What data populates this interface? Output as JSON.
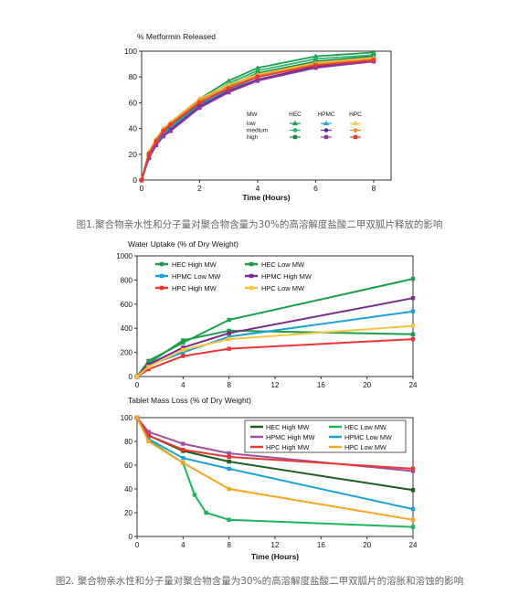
{
  "captions": {
    "fig1": "图1.聚合物亲水性和分子量对聚合物含量为30%的高溶解度盐酸二甲双胍片释放的影响",
    "fig2": "图2. 聚合物亲水性和分子量对聚合物含量为30%的高溶解度盐酸二甲双胍片的溶胀和溶蚀的影响"
  },
  "legend1": {
    "mw_header": "MW",
    "rows": [
      "low",
      "medium",
      "high"
    ],
    "cols": [
      "HEC",
      "HPMC",
      "HPC"
    ]
  },
  "colors": {
    "HEC": "#1e9e4a",
    "HPMC": "#6b2d8f",
    "HPC": "#e8b63a",
    "HPC_alt": "#e53935",
    "HPMC_low": "#1da1d8",
    "HEC_high_dark": "#1b5e20",
    "orange": "#f5a623"
  },
  "chart_data": [
    {
      "id": "release",
      "type": "line",
      "title": "% Metformin Released",
      "xlabel": "Time (Hours)",
      "ylabel": "",
      "xlim": [
        0,
        8.6
      ],
      "ylim": [
        0,
        100
      ],
      "xticks": [
        0,
        2,
        4,
        6,
        8
      ],
      "yticks": [
        0,
        20,
        40,
        60,
        80,
        100
      ],
      "series": [
        {
          "name": "HEC low",
          "color": "#1e9e4a",
          "x": [
            0,
            0.25,
            0.5,
            0.75,
            1,
            2,
            3,
            4,
            6,
            8
          ],
          "y": [
            0,
            20,
            30,
            38,
            42,
            63,
            77,
            87,
            96,
            99
          ]
        },
        {
          "name": "HEC medium",
          "color": "#2bb673",
          "x": [
            0,
            0.25,
            0.5,
            0.75,
            1,
            2,
            3,
            4,
            6,
            8
          ],
          "y": [
            0,
            19,
            29,
            37,
            41,
            61,
            75,
            85,
            94,
            97
          ]
        },
        {
          "name": "HEC high",
          "color": "#178a3c",
          "x": [
            0,
            0.25,
            0.5,
            0.75,
            1,
            2,
            3,
            4,
            6,
            8
          ],
          "y": [
            0,
            18,
            28,
            36,
            40,
            59,
            73,
            83,
            92,
            96
          ]
        },
        {
          "name": "HPMC low",
          "color": "#1da1d8",
          "x": [
            0,
            0.25,
            0.5,
            0.75,
            1,
            2,
            3,
            4,
            6,
            8
          ],
          "y": [
            0,
            18,
            28,
            35,
            40,
            58,
            70,
            80,
            90,
            95
          ]
        },
        {
          "name": "HPMC medium",
          "color": "#5a2d91",
          "x": [
            0,
            0.25,
            0.5,
            0.75,
            1,
            2,
            3,
            4,
            6,
            8
          ],
          "y": [
            0,
            17,
            27,
            34,
            39,
            57,
            69,
            78,
            88,
            93
          ]
        },
        {
          "name": "HPMC high",
          "color": "#8e3a9e",
          "x": [
            0,
            0.25,
            0.5,
            0.75,
            1,
            2,
            3,
            4,
            6,
            8
          ],
          "y": [
            0,
            17,
            27,
            34,
            38,
            56,
            68,
            77,
            87,
            92
          ]
        },
        {
          "name": "HPC low",
          "color": "#f2c14e",
          "x": [
            0,
            0.25,
            0.5,
            0.75,
            1,
            2,
            3,
            4,
            6,
            8
          ],
          "y": [
            0,
            22,
            32,
            40,
            45,
            63,
            74,
            82,
            91,
            95
          ]
        },
        {
          "name": "HPC medium",
          "color": "#f28c28",
          "x": [
            0,
            0.25,
            0.5,
            0.75,
            1,
            2,
            3,
            4,
            6,
            8
          ],
          "y": [
            0,
            21,
            31,
            39,
            44,
            62,
            72,
            81,
            90,
            94
          ]
        },
        {
          "name": "HPC high",
          "color": "#e53935",
          "x": [
            0,
            0.25,
            0.5,
            0.75,
            1,
            2,
            3,
            4,
            6,
            8
          ],
          "y": [
            0,
            20,
            30,
            38,
            43,
            60,
            71,
            80,
            89,
            93
          ]
        }
      ]
    },
    {
      "id": "water",
      "type": "line",
      "title": "Water Uptake (% of Dry Weight)",
      "xlabel": "",
      "ylabel": "",
      "xlim": [
        0,
        24
      ],
      "ylim": [
        0,
        1000
      ],
      "xticks": [
        0,
        4,
        8,
        12,
        16,
        20,
        24
      ],
      "yticks": [
        0,
        200,
        400,
        600,
        800,
        1000
      ],
      "series": [
        {
          "name": "HEC High MW",
          "color": "#1e9e4a",
          "x": [
            0,
            1,
            4,
            8,
            24
          ],
          "y": [
            0,
            130,
            280,
            470,
            810
          ]
        },
        {
          "name": "HEC Low MW",
          "color": "#1e9e4a",
          "x": [
            0,
            1,
            4,
            8,
            24
          ],
          "y": [
            0,
            110,
            300,
            380,
            350
          ]
        },
        {
          "name": "HPMC Low MW",
          "color": "#1da1d8",
          "x": [
            0,
            1,
            4,
            8,
            24
          ],
          "y": [
            0,
            90,
            200,
            330,
            540
          ]
        },
        {
          "name": "HPMC High MW",
          "color": "#7b2d8e",
          "x": [
            0,
            1,
            4,
            8,
            24
          ],
          "y": [
            0,
            100,
            240,
            360,
            650
          ]
        },
        {
          "name": "HPC High MW",
          "color": "#e53935",
          "x": [
            0,
            1,
            4,
            8,
            24
          ],
          "y": [
            0,
            60,
            170,
            230,
            310
          ]
        },
        {
          "name": "HPC Low MW",
          "color": "#f5c542",
          "x": [
            0,
            1,
            4,
            8,
            24
          ],
          "y": [
            0,
            80,
            220,
            310,
            420
          ]
        }
      ]
    },
    {
      "id": "massloss",
      "type": "line",
      "title": "Tablet Mass Loss (% of Dry Weight)",
      "xlabel": "Time (Hours)",
      "ylabel": "",
      "xlim": [
        0,
        24
      ],
      "ylim": [
        0,
        100
      ],
      "xticks": [
        0,
        4,
        8,
        12,
        16,
        20,
        24
      ],
      "yticks": [
        0,
        20,
        40,
        60,
        80,
        100
      ],
      "series": [
        {
          "name": "HEC High MW",
          "color": "#1b5e20",
          "x": [
            0,
            1,
            4,
            8,
            24
          ],
          "y": [
            100,
            85,
            72,
            63,
            39
          ]
        },
        {
          "name": "HEC Low MW",
          "color": "#1fb35a",
          "x": [
            0,
            1,
            4,
            5,
            6,
            8,
            24
          ],
          "y": [
            100,
            81,
            62,
            35,
            20,
            14,
            8
          ]
        },
        {
          "name": "HPMC High MW",
          "color": "#a0519e",
          "x": [
            0,
            1,
            4,
            8,
            24
          ],
          "y": [
            100,
            88,
            78,
            70,
            55
          ]
        },
        {
          "name": "HPMC Low MW",
          "color": "#1da1d8",
          "x": [
            0,
            1,
            4,
            8,
            24
          ],
          "y": [
            100,
            82,
            66,
            57,
            23
          ]
        },
        {
          "name": "HPC High MW",
          "color": "#e53935",
          "x": [
            0,
            1,
            4,
            8,
            24
          ],
          "y": [
            100,
            85,
            73,
            67,
            57
          ]
        },
        {
          "name": "HPC Low MW",
          "color": "#f5a623",
          "x": [
            0,
            1,
            4,
            8,
            24
          ],
          "y": [
            100,
            80,
            62,
            40,
            14
          ]
        }
      ]
    }
  ]
}
